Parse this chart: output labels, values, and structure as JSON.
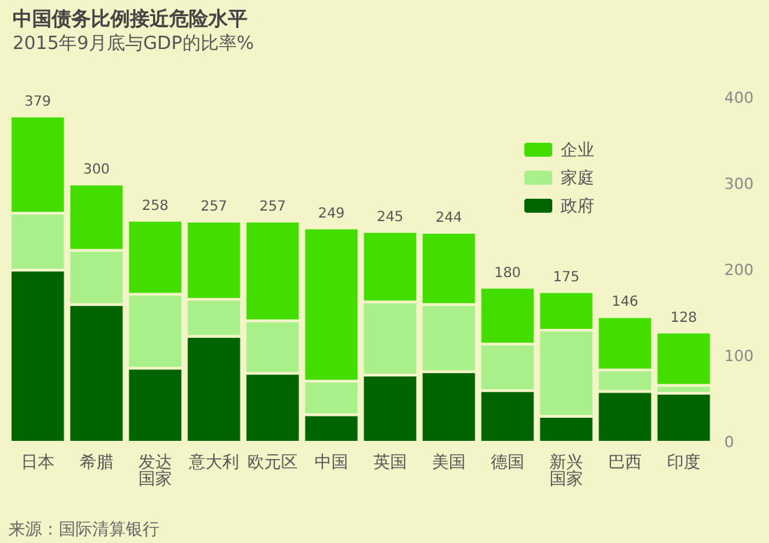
{
  "chart_data": {
    "type": "bar",
    "stacked": true,
    "title": "中国债务比例接近危险水平",
    "subtitle": "2015年9月底与GDP的比率%",
    "categories": [
      "日本",
      "希腊",
      "发达国家",
      "意大利",
      "欧元区",
      "中国",
      "英国",
      "美国",
      "德国",
      "新兴国家",
      "巴西",
      "印度"
    ],
    "series": [
      {
        "name": "政府",
        "color": "#006400",
        "values": [
          200,
          160,
          86,
          123,
          80,
          32,
          78,
          82,
          60,
          30,
          59,
          57
        ]
      },
      {
        "name": "家庭",
        "color": "#aaf08a",
        "values": [
          66,
          63,
          86,
          43,
          61,
          39,
          85,
          78,
          54,
          100,
          25,
          9
        ]
      },
      {
        "name": "企业",
        "color": "#44dd00",
        "values": [
          113,
          77,
          86,
          91,
          116,
          178,
          82,
          84,
          66,
          45,
          62,
          62
        ]
      }
    ],
    "totals": [
      "379",
      "300",
      "258",
      "257",
      "257",
      "249",
      "245",
      "244",
      "180",
      "175",
      "146",
      "128"
    ],
    "ylim": [
      0,
      400
    ],
    "yticks": [
      0,
      100,
      200,
      300,
      400
    ],
    "grid": false,
    "legend": "top right",
    "annotations": [
      "来源：国际清算银行"
    ]
  }
}
